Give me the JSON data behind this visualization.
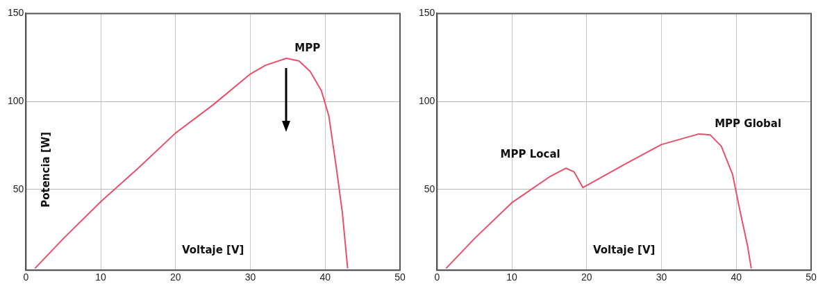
{
  "chart_data": [
    {
      "type": "line",
      "xlabel": "Voltaje [V]",
      "ylabel": "Potencia [W]",
      "xlim": [
        0,
        50
      ],
      "ylim": [
        4,
        150
      ],
      "xticks": [
        0,
        10,
        20,
        30,
        40,
        50
      ],
      "yticks": [
        50,
        100,
        150
      ],
      "grid": true,
      "legend": false,
      "series": [
        {
          "color": "#e8506a",
          "x": [
            1.2,
            5,
            10,
            15,
            20,
            25,
            30,
            32,
            34.8,
            36.5,
            38,
            39.5,
            40.5,
            41.5,
            42.3,
            43
          ],
          "values": [
            5,
            22,
            43,
            62,
            82,
            98,
            115.6,
            120.5,
            124.5,
            123,
            117,
            106,
            91.5,
            62,
            36.6,
            5
          ]
        }
      ],
      "annotations": [
        {
          "text": "MPP",
          "x": 34.8,
          "y": 124.5
        }
      ]
    },
    {
      "type": "line",
      "xlabel": "Voltaje [V]",
      "xlim": [
        0,
        50
      ],
      "ylim": [
        4,
        150
      ],
      "xticks": [
        0,
        10,
        20,
        30,
        40,
        50
      ],
      "yticks": [
        50,
        100,
        150
      ],
      "grid": true,
      "legend": false,
      "series": [
        {
          "color": "#e8506a",
          "x": [
            1.2,
            5,
            10,
            15,
            17.2,
            18.3,
            19.5,
            25,
            30,
            35,
            36.5,
            38,
            39.5,
            40.5,
            41.5,
            42
          ],
          "values": [
            5,
            22,
            42.4,
            57,
            62,
            60,
            51,
            64,
            75.5,
            81.5,
            81,
            74.5,
            58.5,
            37.6,
            18,
            5
          ]
        }
      ],
      "annotations": [
        {
          "text": "MPP Local",
          "x": 17.2,
          "y": 62
        },
        {
          "text": "MPP Global",
          "x": 36,
          "y": 81.5
        }
      ]
    }
  ]
}
